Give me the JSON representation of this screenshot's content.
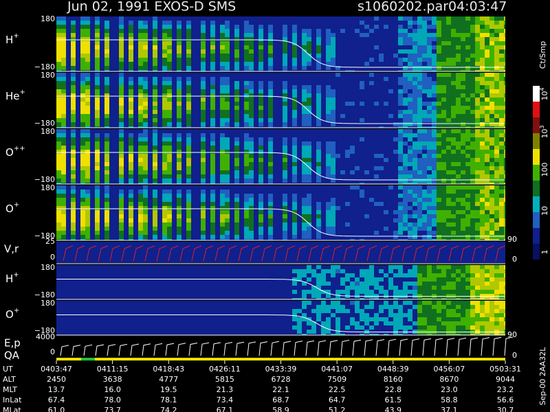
{
  "title": "Jun 02, 1991   EXOS-D SMS",
  "file": "s1060202.par",
  "time": "04:03:47",
  "panels": [
    {
      "species": "H",
      "charge": "+",
      "ymax": "180",
      "ymin": "−180"
    },
    {
      "species": "He",
      "charge": "+",
      "ymax": "180",
      "ymin": "−180"
    },
    {
      "species": "O",
      "charge": "++",
      "ymax": "180",
      "ymin": "−180"
    },
    {
      "species": "O",
      "charge": "+",
      "ymax": "180",
      "ymin": "−180"
    }
  ],
  "vr": {
    "label": "V,r",
    "ymax": "25",
    "ymin": "0",
    "right_max": "90",
    "right_min": "0"
  },
  "lower_panels": [
    {
      "species": "H",
      "charge": "+",
      "ymax": "180",
      "ymin": "−180"
    },
    {
      "species": "O",
      "charge": "+",
      "ymax": "180",
      "ymin": "−180",
      "right": "90"
    }
  ],
  "ep": {
    "label": "E,p",
    "qa": "QA",
    "ymax": "4000",
    "ymin": "0",
    "right_min": "0"
  },
  "colorbar": {
    "title": "Ct/Smp",
    "labels": [
      {
        "text": "10",
        "sup": "4"
      },
      {
        "text": "10",
        "sup": "3"
      },
      {
        "text": "100"
      },
      {
        "text": "10"
      },
      {
        "text": "1"
      }
    ]
  },
  "table": {
    "rows": [
      {
        "label": "UT",
        "values": [
          "0403:47",
          "0411:15",
          "0418:43",
          "0426:11",
          "0433:39",
          "0441:07",
          "0448:39",
          "0456:07",
          "0503:31"
        ]
      },
      {
        "label": "ALT",
        "values": [
          "2450",
          "3638",
          "4777",
          "5815",
          "6728",
          "7509",
          "8160",
          "8670",
          "9044"
        ]
      },
      {
        "label": "MLT",
        "values": [
          "13.7",
          "16.0",
          "19.5",
          "21.3",
          "22.1",
          "22.5",
          "22.8",
          "23.0",
          "23.2"
        ]
      },
      {
        "label": "InLat",
        "values": [
          "67.4",
          "78.0",
          "78.1",
          "73.4",
          "68.7",
          "64.7",
          "61.5",
          "58.8",
          "56.6"
        ]
      },
      {
        "label": "MLat",
        "values": [
          "61.0",
          "73.7",
          "74.2",
          "67.1",
          "58.9",
          "51.2",
          "43.9",
          "37.1",
          "30.7"
        ]
      }
    ]
  },
  "footer_note": "Sep-00  2AA32L"
}
